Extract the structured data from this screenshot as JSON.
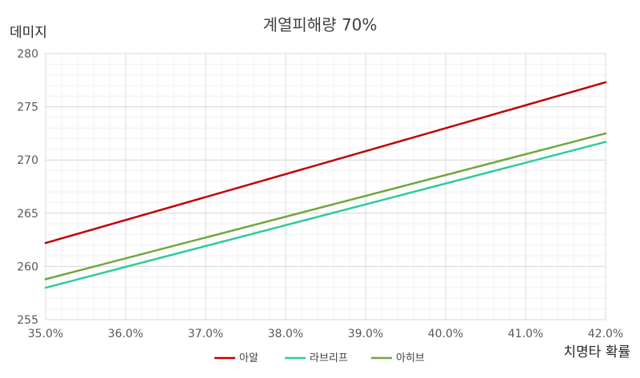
{
  "chart_data": {
    "type": "line",
    "title": "계열피해량 70%",
    "xlabel": "치명타 확률",
    "ylabel": "데미지",
    "x": [
      35.0,
      42.0
    ],
    "x_ticks": [
      "35.0%",
      "36.0%",
      "37.0%",
      "38.0%",
      "39.0%",
      "40.0%",
      "41.0%",
      "42.0%"
    ],
    "x_tick_values": [
      35,
      36,
      37,
      38,
      39,
      40,
      41,
      42
    ],
    "xlim": [
      35,
      42
    ],
    "ylim": [
      255,
      280
    ],
    "y_ticks": [
      "255",
      "260",
      "265",
      "270",
      "275",
      "280"
    ],
    "y_tick_values": [
      255,
      260,
      265,
      270,
      275,
      280
    ],
    "grid": true,
    "legend_position": "bottom",
    "series": [
      {
        "name": "아알",
        "color": "#c00000",
        "values": [
          262.2,
          277.3
        ]
      },
      {
        "name": "라브리프",
        "color": "#2ecc9a",
        "values": [
          258.0,
          271.7
        ]
      },
      {
        "name": "아히브",
        "color": "#70a83b",
        "values": [
          258.8,
          272.5
        ]
      }
    ]
  }
}
